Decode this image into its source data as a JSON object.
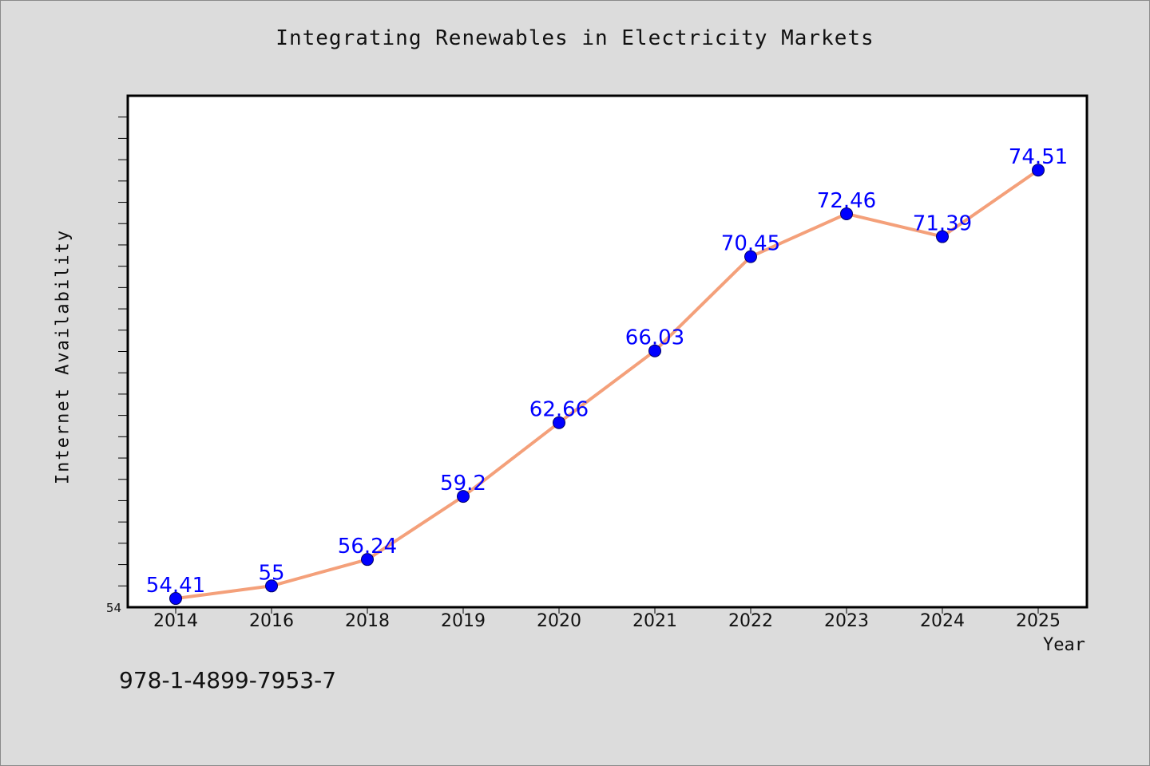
{
  "chart_data": {
    "type": "line",
    "title": "Integrating Renewables in Electricity Markets",
    "xlabel": "Year",
    "ylabel": "Internet Availability",
    "categories": [
      "2014",
      "2016",
      "2018",
      "2019",
      "2020",
      "2021",
      "2022",
      "2023",
      "2024",
      "2025"
    ],
    "series": [
      {
        "values": [
          54.41,
          55,
          56.24,
          59.2,
          62.66,
          66.03,
          70.45,
          72.46,
          71.39,
          74.51
        ],
        "labels": [
          "54.41",
          "55",
          "56.24",
          "59.2",
          "62.66",
          "66.03",
          "70.45",
          "72.46",
          "71.39",
          "74.51"
        ]
      }
    ],
    "ylim": [
      54,
      78
    ],
    "y_tick_labels": [
      "54"
    ],
    "grid": false,
    "legend": "none",
    "colors": {
      "line": "#f4a07a",
      "marker": "#0000ff",
      "data_label": "#0000ff",
      "background": "#dcdcdc",
      "plot_background": "#ffffff"
    }
  },
  "footer_text": "978-1-4899-7953-7"
}
